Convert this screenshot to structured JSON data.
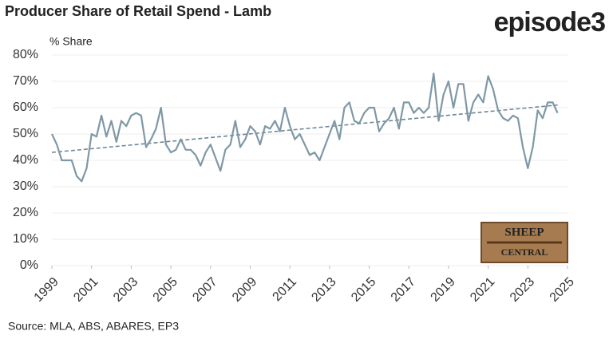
{
  "chart_data": {
    "type": "line",
    "title": "Producer Share of Retail Spend - Lamb",
    "y_label": "% Share",
    "source": "Source: MLA, ABS, ABARES, EP3",
    "brand": "episode3",
    "watermark": [
      "SHEEP",
      "CENTRAL"
    ],
    "color": "#7f98a6",
    "grid": true,
    "xlim": [
      1999,
      2025
    ],
    "xticks": [
      1999,
      2001,
      2003,
      2005,
      2007,
      2009,
      2011,
      2013,
      2015,
      2017,
      2019,
      2021,
      2023,
      2025
    ],
    "ylim": [
      0,
      80
    ],
    "yticks": [
      {
        "value": 0,
        "label": "0%"
      },
      {
        "value": 10,
        "label": "10%"
      },
      {
        "value": 20,
        "label": "20%"
      },
      {
        "value": 30,
        "label": "30%"
      },
      {
        "value": 40,
        "label": "40%"
      },
      {
        "value": 50,
        "label": "50%"
      },
      {
        "value": 60,
        "label": "60%"
      },
      {
        "value": 70,
        "label": "70%"
      },
      {
        "value": 80,
        "label": "80%"
      }
    ],
    "x": [
      1999,
      1999.25,
      1999.5,
      1999.75,
      2000,
      2000.25,
      2000.5,
      2000.75,
      2001,
      2001.25,
      2001.5,
      2001.75,
      2002,
      2002.25,
      2002.5,
      2002.75,
      2003,
      2003.25,
      2003.5,
      2003.75,
      2004,
      2004.25,
      2004.5,
      2004.75,
      2005,
      2005.25,
      2005.5,
      2005.75,
      2006,
      2006.25,
      2006.5,
      2006.75,
      2007,
      2007.25,
      2007.5,
      2007.75,
      2008,
      2008.25,
      2008.5,
      2008.75,
      2009,
      2009.25,
      2009.5,
      2009.75,
      2010,
      2010.25,
      2010.5,
      2010.75,
      2011,
      2011.25,
      2011.5,
      2011.75,
      2012,
      2012.25,
      2012.5,
      2012.75,
      2013,
      2013.25,
      2013.5,
      2013.75,
      2014,
      2014.25,
      2014.5,
      2014.75,
      2015,
      2015.25,
      2015.5,
      2015.75,
      2016,
      2016.25,
      2016.5,
      2016.75,
      2017,
      2017.25,
      2017.5,
      2017.75,
      2018,
      2018.25,
      2018.5,
      2018.75,
      2019,
      2019.25,
      2019.5,
      2019.75,
      2020,
      2020.25,
      2020.5,
      2020.75,
      2021,
      2021.25,
      2021.5,
      2021.75,
      2022,
      2022.25,
      2022.5,
      2022.75,
      2023,
      2023.25,
      2023.5,
      2023.75,
      2024,
      2024.25,
      2024.5
    ],
    "values": [
      50,
      46,
      40,
      40,
      40,
      34,
      32,
      37,
      50,
      49,
      57,
      49,
      55,
      47,
      55,
      53,
      57,
      58,
      57,
      45,
      48,
      52,
      60,
      46,
      43,
      44,
      48,
      44,
      44,
      42,
      38,
      43,
      46,
      41,
      36,
      44,
      46,
      55,
      45,
      48,
      53,
      51,
      46,
      53,
      52,
      55,
      51,
      60,
      53,
      48,
      50,
      46,
      42,
      43,
      40,
      45,
      50,
      55,
      48,
      60,
      62,
      55,
      54,
      58,
      60,
      60,
      51,
      54,
      56,
      60,
      52,
      62,
      62,
      58,
      60,
      58,
      60,
      73,
      55,
      65,
      70,
      60,
      69,
      69,
      55,
      62,
      65,
      62,
      72,
      67,
      59,
      56,
      55,
      57,
      56,
      45,
      37,
      45,
      59,
      56,
      62,
      62,
      58
    ],
    "trendline": {
      "x": [
        1999,
        2024.5
      ],
      "values": [
        43,
        61
      ],
      "color": "#6e8796"
    }
  }
}
